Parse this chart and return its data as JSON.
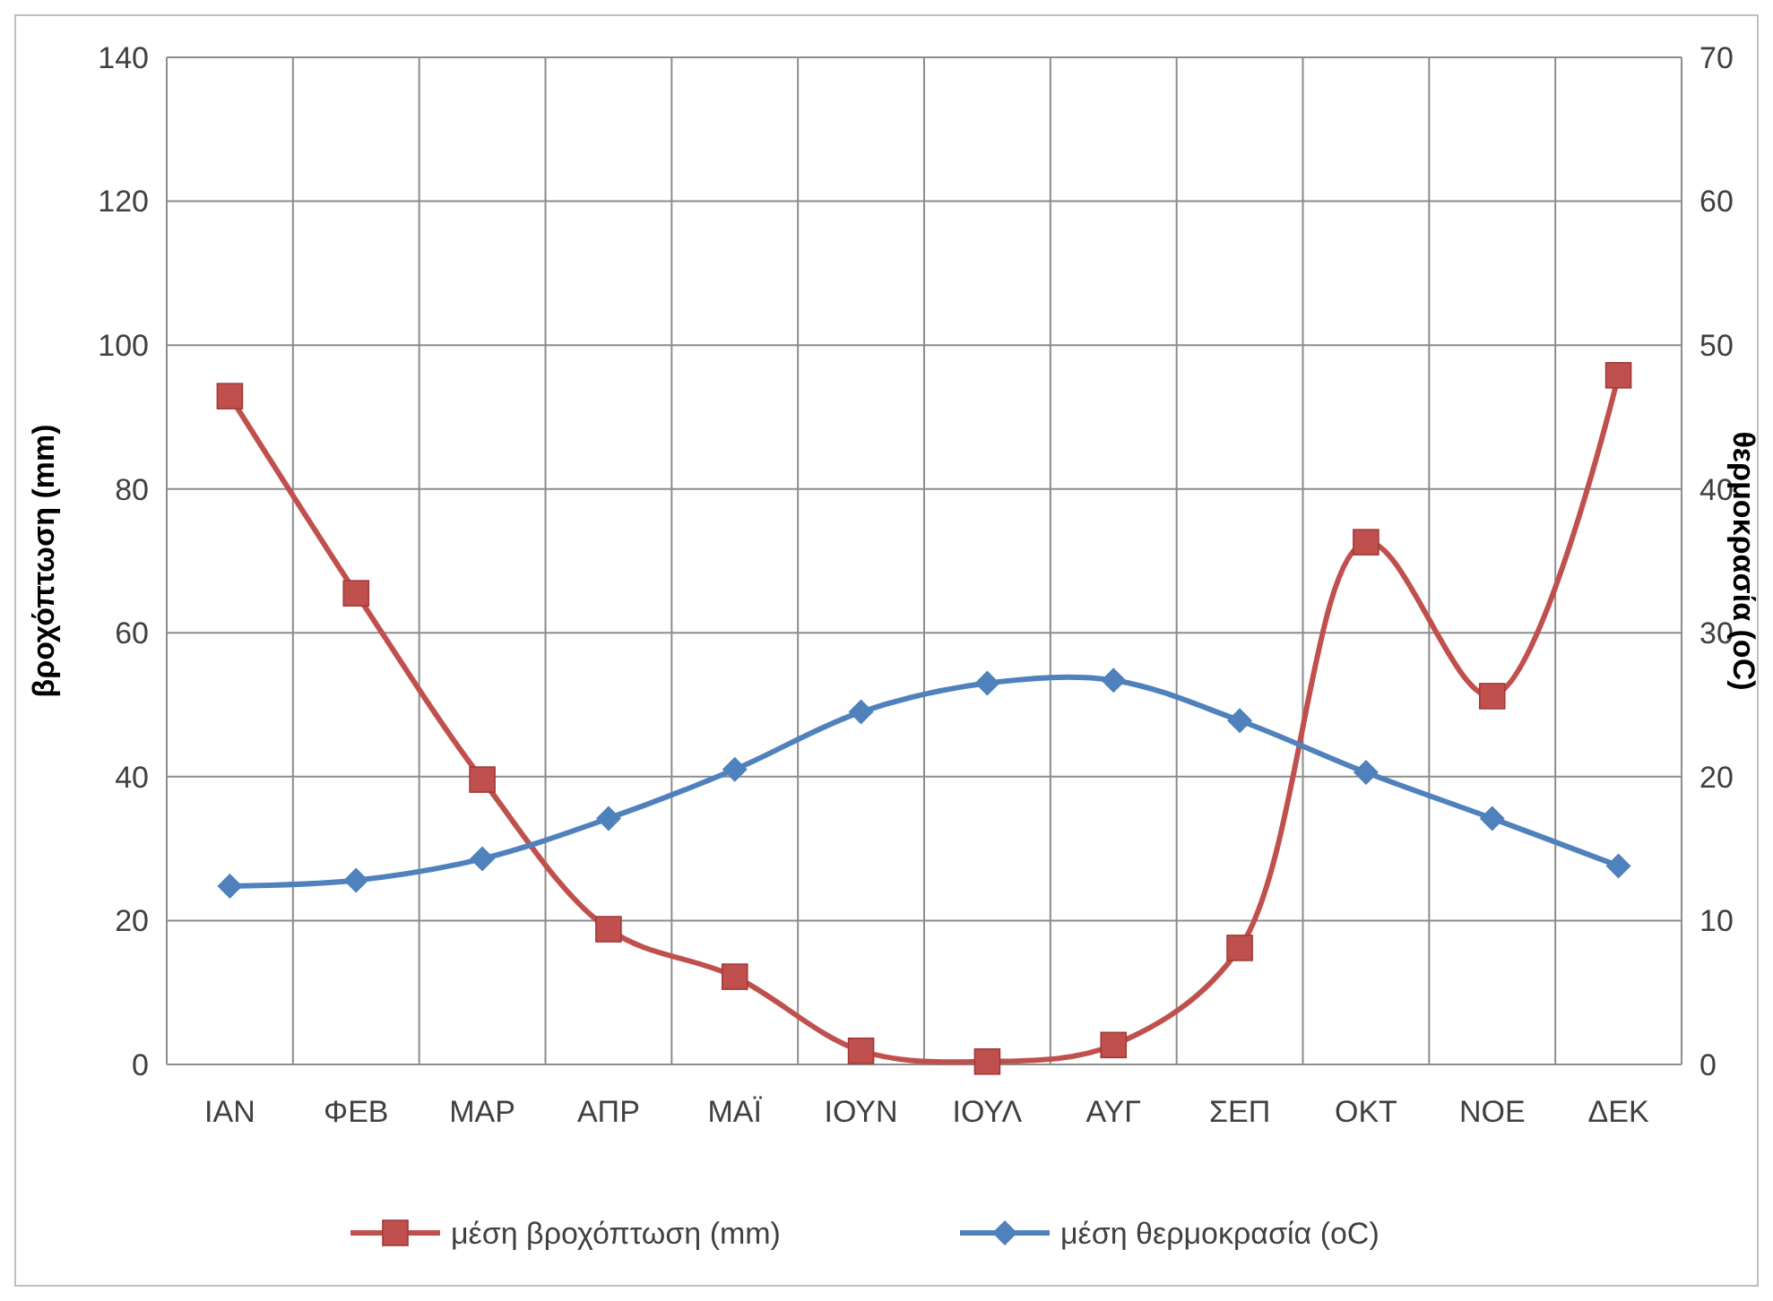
{
  "chart_data": {
    "type": "line",
    "categories": [
      "ΙΑΝ",
      "ΦΕΒ",
      "ΜΑΡ",
      "ΑΠΡ",
      "ΜΑΪ",
      "ΙΟΥΝ",
      "ΙΟΥΛ",
      "ΑΥΓ",
      "ΣΕΠ",
      "ΟΚΤ",
      "ΝΟΕ",
      "ΔΕΚ"
    ],
    "ylabel": "βροχόπτωση (mm)",
    "y2label": "θερμοκρασία (oC)",
    "ylim": [
      0,
      140
    ],
    "yticks": [
      0,
      20,
      40,
      60,
      80,
      100,
      120,
      140
    ],
    "y2lim": [
      0,
      70
    ],
    "y2ticks": [
      0,
      10,
      20,
      30,
      40,
      50,
      60,
      70
    ],
    "grid": true,
    "legend": "bottom",
    "series": [
      {
        "name": "μέση βροχόπτωση (mm)",
        "color": "#c0504d",
        "marker": "square",
        "values": [
          92.9,
          65.5,
          39.6,
          18.8,
          12.2,
          1.9,
          0.4,
          2.7,
          16.2,
          72.6,
          51.2,
          95.8
        ]
      },
      {
        "name": "μέση θερμοκρασία (oC)",
        "color": "#4f81bd",
        "marker": "diamond",
        "axis": "y2",
        "values": [
          12.4,
          12.8,
          14.3,
          17.1,
          20.5,
          24.5,
          26.5,
          26.7,
          23.9,
          20.3,
          17.1,
          13.8
        ]
      }
    ]
  }
}
